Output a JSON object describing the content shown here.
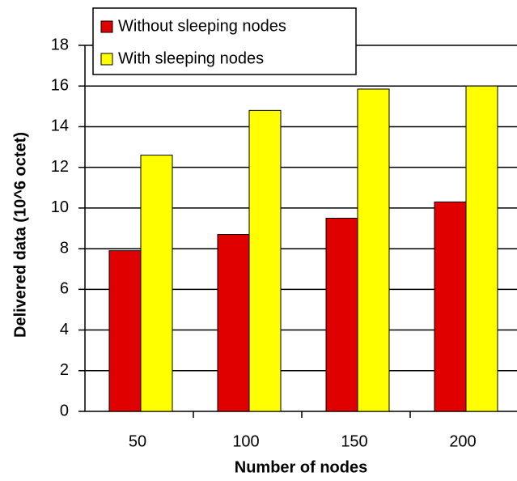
{
  "chart_data": {
    "type": "bar",
    "x_label": "Number of nodes",
    "y_label": "Delivered data (10^6 octet)",
    "categories": [
      "50",
      "100",
      "150",
      "200"
    ],
    "series": [
      {
        "name": "Without sleeping nodes",
        "color": "#e00000",
        "values": [
          7.9,
          8.7,
          9.5,
          10.3
        ]
      },
      {
        "name": "With sleeping nodes",
        "color": "#ffff00",
        "values": [
          12.6,
          14.8,
          15.85,
          16.0
        ]
      }
    ],
    "ylim": [
      0,
      18
    ],
    "yticks": [
      0,
      2,
      4,
      6,
      8,
      10,
      12,
      14,
      16,
      18
    ],
    "grid": true
  }
}
